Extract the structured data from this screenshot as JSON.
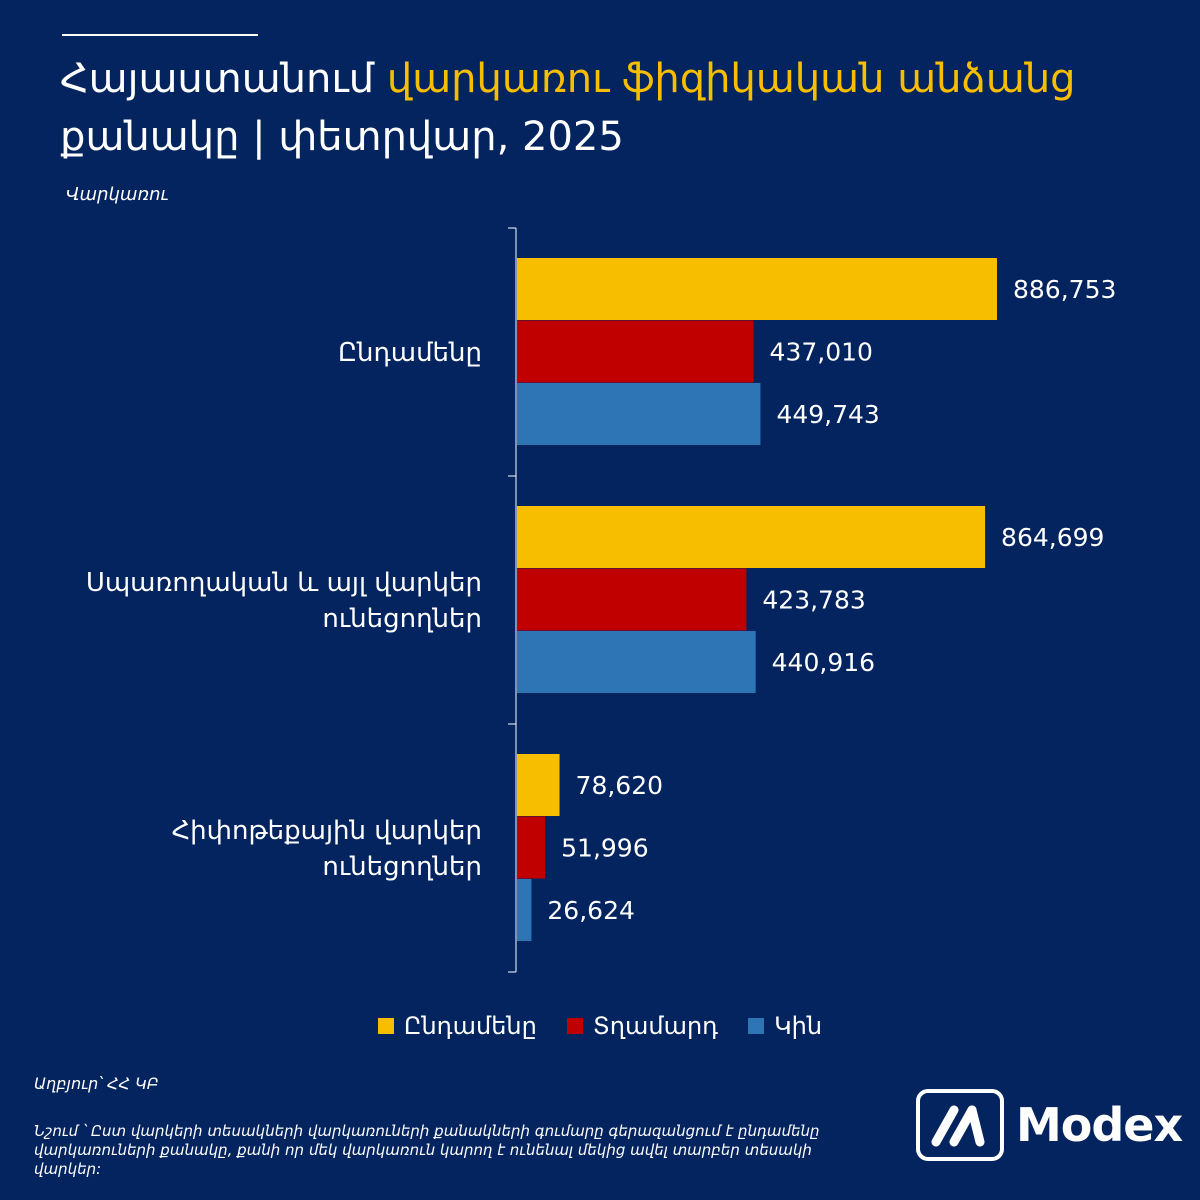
{
  "title": {
    "part1": "Հայաստանում ",
    "accent": "վարկառու ֆիզիկական անձանց",
    "part2": "քանակը | փետրվար, 2025"
  },
  "y_caption": "Վարկառու",
  "legend": [
    {
      "label": "Ընդամենը",
      "color": "#f7be00"
    },
    {
      "label": "Տղամարդ",
      "color": "#c00000"
    },
    {
      "label": "Կին",
      "color": "#2e75b6"
    }
  ],
  "chart_data": {
    "type": "bar",
    "orientation": "horizontal",
    "categories": [
      [
        "Ընդամենը"
      ],
      [
        "Սպառողական և այլ վարկեր",
        "ունեցողներ"
      ],
      [
        "Հիփոթեքային վարկեր",
        "ունեցողներ"
      ]
    ],
    "series": [
      {
        "name": "Ընդամենը",
        "color": "#f7be00",
        "values": [
          886753,
          864699,
          78620
        ],
        "labels": [
          "886,753",
          "864,699",
          "78,620"
        ]
      },
      {
        "name": "Տղամարդ",
        "color": "#c00000",
        "values": [
          437010,
          423783,
          51996
        ],
        "labels": [
          "437,010",
          "423,783",
          "51,996"
        ]
      },
      {
        "name": "Կին",
        "color": "#2e75b6",
        "values": [
          449743,
          440916,
          26624
        ],
        "labels": [
          "449,743",
          "440,916",
          "26,624"
        ]
      }
    ],
    "xlim": [
      0,
      1000000
    ],
    "grid": false,
    "legend_position": "bottom"
  },
  "source": "Աղբյուր՝ ՀՀ ԿԲ",
  "note": "Նշում ՝ Ըստ վարկերի տեսակների վարկառուների քանակների գումարը գերազանցում է ընդամենը վարկառուների քանակը, քանի որ մեկ վարկառուն կարող է ունենալ մեկից ավել տարբեր տեսակի վարկեր:",
  "logo_text": "Modex"
}
